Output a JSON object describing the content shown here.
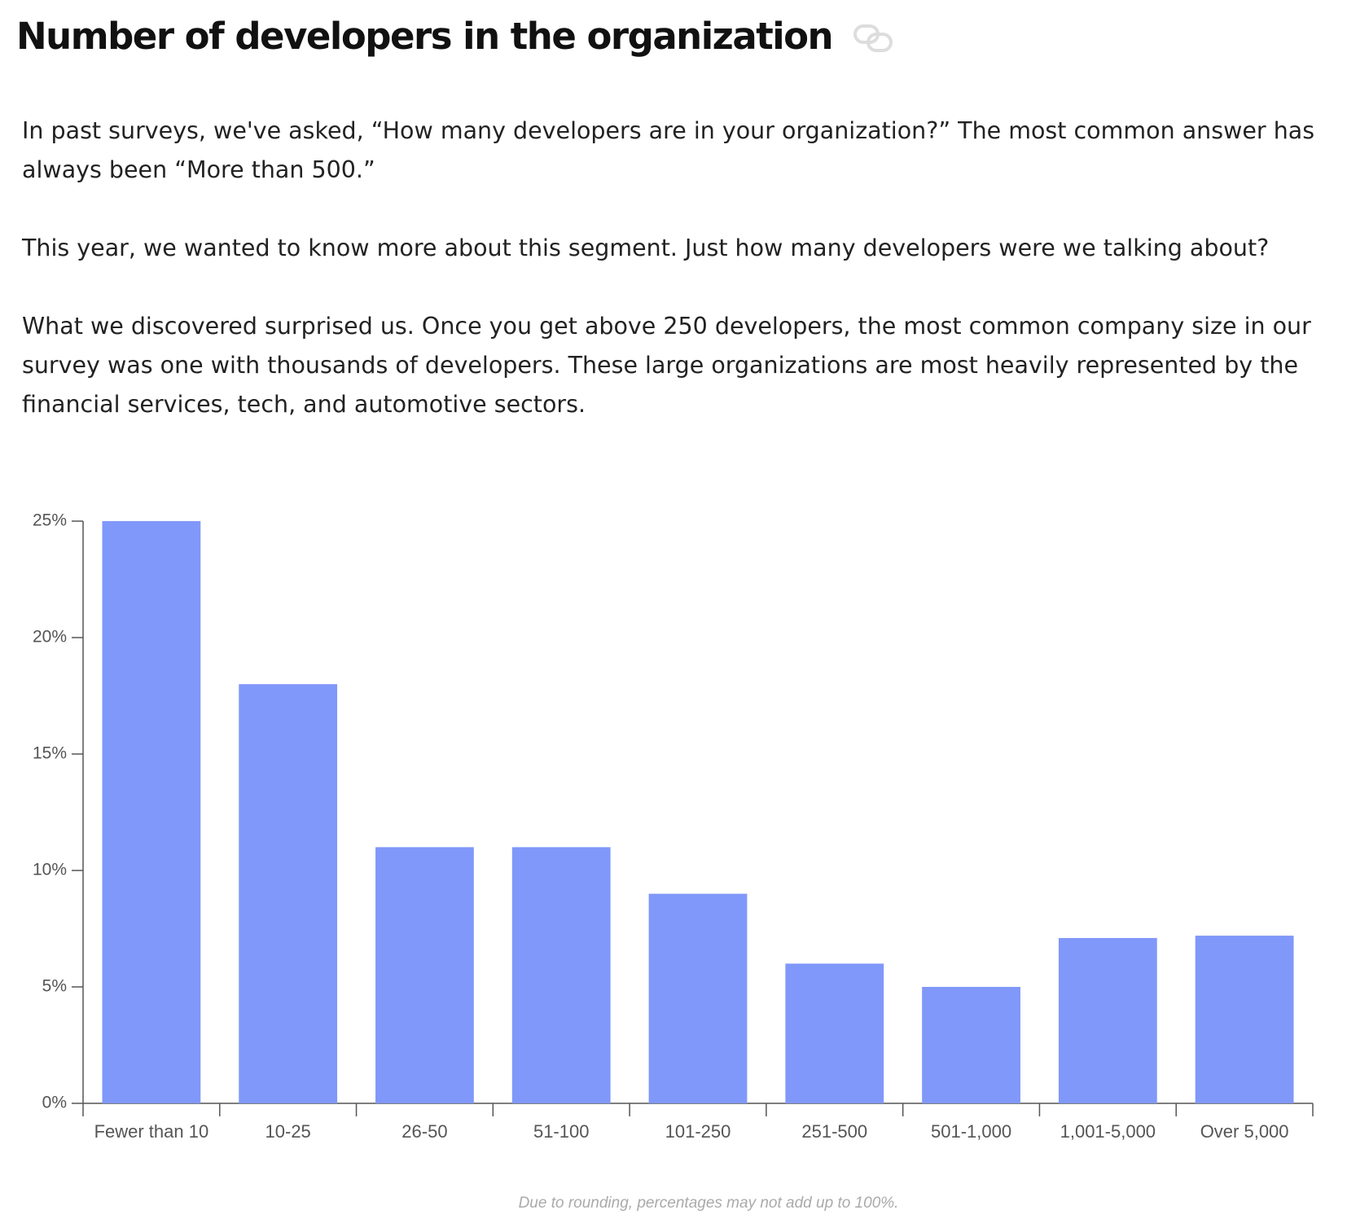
{
  "header": {
    "title": "Number of developers in the organization"
  },
  "paragraphs": [
    "In past surveys, we've asked, “How many developers are in your organization?” The most common answer has always been “More than 500.”",
    "This year, we wanted to know more about this segment. Just how many developers were we talking about?",
    "What we discovered surprised us. Once you get above 250 developers, the most common company size in our survey was one with thousands of developers. These large organizations are most heavily represented by the financial services, tech, and automotive sectors."
  ],
  "chart_data": {
    "type": "bar",
    "categories": [
      "Fewer than 10",
      "10-25",
      "26-50",
      "51-100",
      "101-250",
      "251-500",
      "501-1,000",
      "1,001-5,000",
      "Over 5,000"
    ],
    "values": [
      25,
      18,
      11,
      11,
      9,
      6,
      5,
      7.1,
      7.2
    ],
    "color": "#8098f9",
    "ylim": [
      0,
      25
    ],
    "yticks": [
      {
        "value": 0,
        "label": "0%"
      },
      {
        "value": 5,
        "label": "5%"
      },
      {
        "value": 10,
        "label": "10%"
      },
      {
        "value": 15,
        "label": "15%"
      },
      {
        "value": 20,
        "label": "20%"
      },
      {
        "value": 25,
        "label": "25%"
      }
    ],
    "grid": false,
    "note": "Due to rounding, percentages may not add up to 100%."
  }
}
